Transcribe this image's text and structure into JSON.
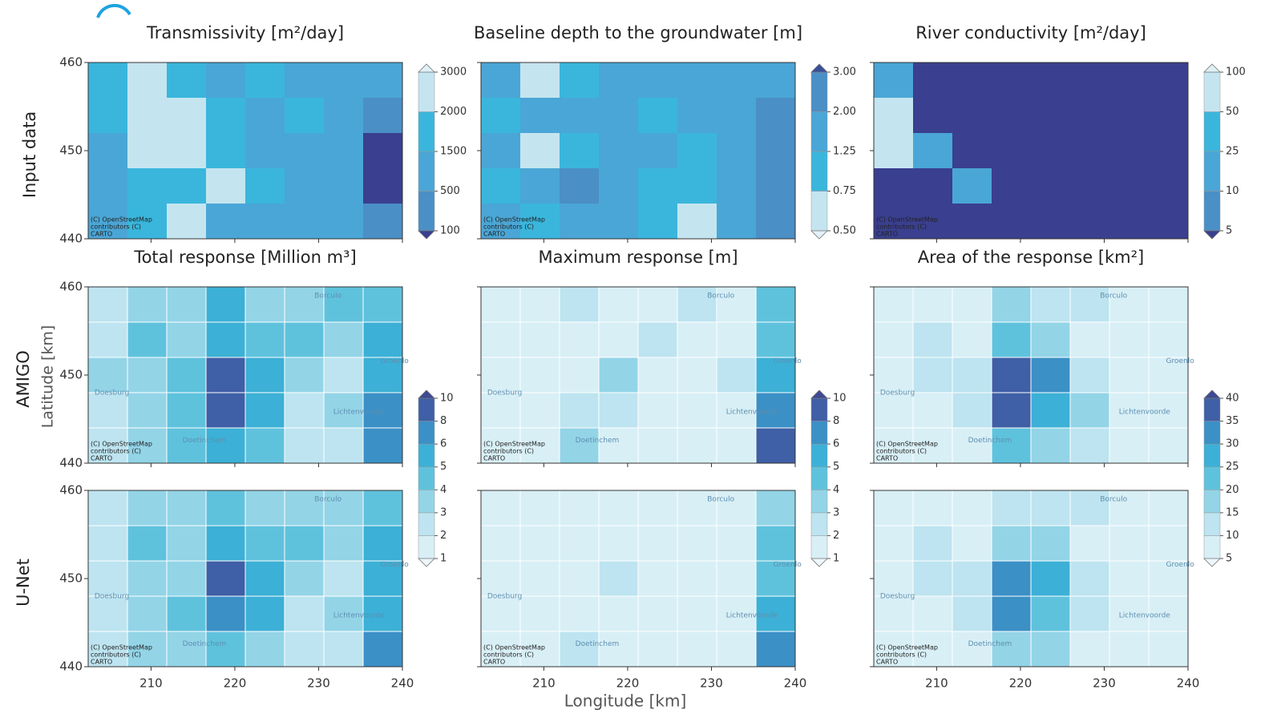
{
  "figure": {
    "row_labels": [
      "Input data",
      "AMIGO",
      "U-Net"
    ],
    "ylabel": "Latitude [km]",
    "xlabel": "Longitude [km]",
    "places": [
      "Borculo",
      "Doesburg",
      "Doetinchem",
      "Lichtenvoorde",
      "Groenlo"
    ],
    "attribution": [
      "(C) OpenStreetMap",
      "contributors (C)",
      "CARTO"
    ]
  },
  "chart_data": [
    {
      "type": "heatmap",
      "title": "Transmissivity [m²/day]",
      "xlim": [
        202.5,
        240
      ],
      "ylim": [
        440,
        460
      ],
      "xticks": [
        210,
        220,
        230,
        240
      ],
      "yticks": [
        440,
        450,
        460
      ],
      "xticklabels": false,
      "yticklabels": true,
      "levels": [
        100,
        500,
        1500,
        2000,
        3000
      ],
      "colors": [
        "#3a3f8f",
        "#4a8fc6",
        "#4aa6d6",
        "#3ab6dc",
        "#c4e5f0",
        "#dff1f7"
      ],
      "grid": [
        [
          1500,
          2500,
          1500,
          1000,
          1500,
          1000,
          700,
          1000
        ],
        [
          1500,
          2500,
          2500,
          1500,
          1000,
          1500,
          1000,
          300
        ],
        [
          1000,
          2500,
          2500,
          1500,
          1000,
          1000,
          1000,
          80
        ],
        [
          1000,
          1500,
          1500,
          2500,
          1500,
          1000,
          1000,
          80
        ],
        [
          1000,
          1500,
          2500,
          1000,
          1000,
          1000,
          1000,
          300
        ]
      ]
    },
    {
      "type": "heatmap",
      "title": "Baseline depth to the groundwater [m]",
      "xlim": [
        202.5,
        240
      ],
      "ylim": [
        440,
        460
      ],
      "xticks": [
        210,
        220,
        230,
        240
      ],
      "yticks": [
        440,
        450,
        460
      ],
      "xticklabels": false,
      "yticklabels": false,
      "levels": [
        {
          "value": 0.5,
          "label": "0.50"
        },
        0.75,
        1.25,
        {
          "value": 2,
          "label": "2.00"
        },
        {
          "value": 3,
          "label": "3.00"
        }
      ],
      "colors": [
        "#e2f2f8",
        "#c4e5f0",
        "#3ab6dc",
        "#4aa6d6",
        "#4a8fc6",
        "#3a4f9a"
      ],
      "grid": [
        [
          1.5,
          0.6,
          1.0,
          1.5,
          1.5,
          1.5,
          1.5,
          1.5
        ],
        [
          1.0,
          1.5,
          1.5,
          1.5,
          1.0,
          1.5,
          1.5,
          2.5
        ],
        [
          1.5,
          0.6,
          1.0,
          1.5,
          1.5,
          1.0,
          1.5,
          2.5
        ],
        [
          1.0,
          1.5,
          2.5,
          1.5,
          1.0,
          1.0,
          1.5,
          2.5
        ],
        [
          1.5,
          1.0,
          1.5,
          1.5,
          1.0,
          0.6,
          1.5,
          2.5
        ]
      ]
    },
    {
      "type": "heatmap",
      "title": "River conductivity [m²/day]",
      "xlim": [
        202.5,
        240
      ],
      "ylim": [
        440,
        460
      ],
      "xticks": [
        210,
        220,
        230,
        240
      ],
      "yticks": [
        440,
        450,
        460
      ],
      "xticklabels": false,
      "yticklabels": false,
      "levels": [
        5,
        10,
        25,
        50,
        100
      ],
      "colors": [
        "#3a3f8f",
        "#4a8fc6",
        "#4aa6d6",
        "#3ab6dc",
        "#c4e5f0",
        "#dff1f7"
      ],
      "grid": [
        [
          20,
          3,
          3,
          3,
          3,
          3,
          3,
          3
        ],
        [
          60,
          3,
          3,
          3,
          3,
          3,
          3,
          3
        ],
        [
          60,
          20,
          3,
          3,
          3,
          3,
          3,
          3
        ],
        [
          3,
          3,
          20,
          3,
          3,
          3,
          3,
          3
        ],
        [
          3,
          3,
          3,
          3,
          3,
          3,
          3,
          3
        ]
      ]
    },
    {
      "type": "heatmap",
      "title": "Total response [Million m³]",
      "xlim": [
        202.5,
        240
      ],
      "ylim": [
        440,
        460
      ],
      "xticks": [
        210,
        220,
        230,
        240
      ],
      "yticks": [
        440,
        450,
        460
      ],
      "xticklabels": false,
      "yticklabels": true,
      "levels": [
        1,
        2,
        3,
        4,
        5,
        6,
        8,
        10
      ],
      "colors": [
        "#eef8fb",
        "#d8eff6",
        "#bde4f0",
        "#93d4e7",
        "#5fc2dd",
        "#3cb0d6",
        "#3b90c6",
        "#3f5fa6",
        "#3e4a94"
      ],
      "grid": [
        [
          2,
          3,
          3,
          5,
          3,
          3,
          4,
          4
        ],
        [
          2,
          4,
          3,
          5,
          4,
          4,
          3,
          5
        ],
        [
          3,
          3,
          4,
          9,
          5,
          3,
          2,
          5
        ],
        [
          2,
          3,
          4,
          8,
          5,
          2,
          3,
          6
        ],
        [
          2,
          3,
          4,
          5,
          4,
          2,
          2,
          7
        ]
      ]
    },
    {
      "type": "heatmap",
      "title": "Maximum response [m]",
      "xlim": [
        202.5,
        240
      ],
      "ylim": [
        440,
        460
      ],
      "xticks": [
        210,
        220,
        230,
        240
      ],
      "yticks": [
        440,
        450,
        460
      ],
      "xticklabels": false,
      "yticklabels": false,
      "levels": [
        1,
        2,
        3,
        4,
        5,
        6,
        8,
        10
      ],
      "colors": [
        "#eef8fb",
        "#d8eff6",
        "#bde4f0",
        "#93d4e7",
        "#5fc2dd",
        "#3cb0d6",
        "#3b90c6",
        "#3f5fa6",
        "#3e4a94"
      ],
      "grid": [
        [
          1,
          1,
          2,
          1,
          1,
          2,
          1,
          4
        ],
        [
          1,
          1,
          1,
          1,
          2,
          1,
          1,
          4
        ],
        [
          1,
          1,
          1,
          3,
          1,
          1,
          2,
          5
        ],
        [
          1,
          1,
          2,
          2,
          1,
          1,
          1,
          6
        ],
        [
          1,
          1,
          3,
          1,
          1,
          1,
          1,
          8
        ]
      ]
    },
    {
      "type": "heatmap",
      "title": "Area of the response [km²]",
      "xlim": [
        202.5,
        240
      ],
      "ylim": [
        440,
        460
      ],
      "xticks": [
        210,
        220,
        230,
        240
      ],
      "yticks": [
        440,
        450,
        460
      ],
      "xticklabels": false,
      "yticklabels": false,
      "levels": [
        5,
        10,
        15,
        20,
        25,
        30,
        35,
        40
      ],
      "colors": [
        "#eef8fb",
        "#d8eff6",
        "#bde4f0",
        "#93d4e7",
        "#5fc2dd",
        "#3cb0d6",
        "#3b90c6",
        "#3f5fa6",
        "#3e4a94"
      ],
      "grid": [
        [
          5,
          5,
          8,
          15,
          10,
          12,
          8,
          5
        ],
        [
          5,
          12,
          8,
          22,
          18,
          8,
          5,
          5
        ],
        [
          5,
          12,
          10,
          38,
          30,
          10,
          5,
          5
        ],
        [
          5,
          8,
          12,
          35,
          25,
          15,
          8,
          5
        ],
        [
          5,
          5,
          8,
          20,
          18,
          10,
          5,
          5
        ]
      ]
    },
    {
      "type": "heatmap",
      "xlim": [
        202.5,
        240
      ],
      "ylim": [
        440,
        460
      ],
      "xticks": [
        210,
        220,
        230,
        240
      ],
      "yticks": [
        440,
        450,
        460
      ],
      "xticklabels": true,
      "yticklabels": true,
      "grid": [
        [
          2,
          3,
          3,
          4,
          3,
          3,
          3,
          4
        ],
        [
          2,
          4,
          3,
          5,
          4,
          4,
          3,
          5
        ],
        [
          2,
          3,
          3,
          8,
          5,
          3,
          2,
          5
        ],
        [
          2,
          3,
          4,
          7,
          5,
          2,
          3,
          5
        ],
        [
          2,
          3,
          3,
          4,
          3,
          2,
          2,
          6
        ]
      ]
    },
    {
      "type": "heatmap",
      "xlim": [
        202.5,
        240
      ],
      "ylim": [
        440,
        460
      ],
      "xticks": [
        210,
        220,
        230,
        240
      ],
      "yticks": [
        440,
        450,
        460
      ],
      "xticklabels": true,
      "yticklabels": false,
      "grid": [
        [
          1,
          1,
          1,
          1,
          1,
          1,
          1,
          3
        ],
        [
          1,
          1,
          1,
          1,
          1,
          1,
          1,
          4
        ],
        [
          1,
          1,
          1,
          2,
          1,
          1,
          1,
          4
        ],
        [
          1,
          1,
          1,
          1,
          1,
          1,
          1,
          5
        ],
        [
          1,
          1,
          2,
          1,
          1,
          1,
          1,
          7
        ]
      ]
    },
    {
      "type": "heatmap",
      "xlim": [
        202.5,
        240
      ],
      "ylim": [
        440,
        460
      ],
      "xticks": [
        210,
        220,
        230,
        240
      ],
      "yticks": [
        440,
        450,
        460
      ],
      "xticklabels": true,
      "yticklabels": false,
      "grid": [
        [
          5,
          5,
          8,
          12,
          10,
          10,
          8,
          5
        ],
        [
          5,
          10,
          8,
          18,
          15,
          8,
          5,
          5
        ],
        [
          5,
          10,
          10,
          32,
          25,
          10,
          5,
          5
        ],
        [
          5,
          8,
          10,
          30,
          22,
          12,
          8,
          5
        ],
        [
          5,
          5,
          8,
          18,
          15,
          8,
          5,
          5
        ]
      ]
    }
  ]
}
